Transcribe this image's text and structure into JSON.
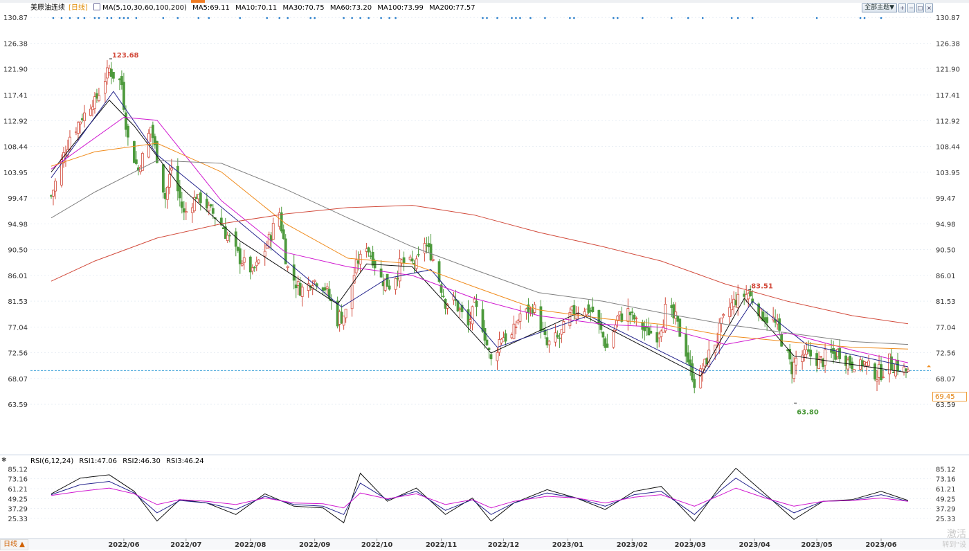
{
  "header": {
    "instrument": "美原油连续",
    "period_tag": "[日线]",
    "ma_params": "MA(5,10,30,60,100,200)",
    "ma_values": [
      {
        "label": "MA5:69.11",
        "color": "#111111"
      },
      {
        "label": "MA10:70.11",
        "color": "#23238c"
      },
      {
        "label": "MA30:70.75",
        "color": "#d018d0"
      },
      {
        "label": "MA60:73.20",
        "color": "#f08c1e"
      },
      {
        "label": "MA100:73.99",
        "color": "#808080"
      },
      {
        "label": "MA200:77.57",
        "color": "#d24b3c"
      }
    ]
  },
  "controls": {
    "main_indicator": "全部主题▼",
    "icons": [
      "zoom-in-icon",
      "zoom-out-icon",
      "restore-icon",
      "close-icon"
    ]
  },
  "rsi_header": {
    "params": "RSI(6,12,24)",
    "values": [
      {
        "label": "RSI1:47.06",
        "color": "#111111"
      },
      {
        "label": "RSI2:46.30",
        "color": "#23238c"
      },
      {
        "label": "RSI3:46.24",
        "color": "#d018d0"
      }
    ]
  },
  "footer": {
    "period_button": "日线 ▲",
    "watermark_line1": "激活",
    "watermark_line2": "转到\"设"
  },
  "current_price_label": "69.45",
  "colors": {
    "up": "#d24b3c",
    "down": "#4d9a3c",
    "ref_line": "#3aa0d8",
    "grid": "#dde6f0"
  },
  "chart_data": [
    {
      "type": "candlestick",
      "title": "美原油连续 [日线]",
      "y_ticks": [
        "130.87",
        "126.38",
        "121.90",
        "117.41",
        "112.92",
        "108.44",
        "103.95",
        "99.47",
        "94.98",
        "90.50",
        "86.01",
        "81.53",
        "77.04",
        "72.56",
        "68.07",
        "63.59"
      ],
      "ylim": [
        59.5,
        131.5
      ],
      "x_ticks": [
        "2022/06",
        "2022/07",
        "2022/08",
        "2022/09",
        "2022/10",
        "2022/11",
        "2022/12",
        "2023/01",
        "2023/02",
        "2023/03",
        "2023/04",
        "2023/05",
        "2023/06"
      ],
      "annotations": [
        {
          "text": "123.68",
          "kind": "high"
        },
        {
          "text": "83.51",
          "kind": "high"
        },
        {
          "text": "63.80",
          "kind": "low"
        }
      ],
      "close_path": {
        "dates": [
          "2022-05-11",
          "2022-05-20",
          "2022-05-27",
          "2022-06-02",
          "2022-06-08",
          "2022-06-14",
          "2022-06-17",
          "2022-06-22",
          "2022-06-28",
          "2022-07-05",
          "2022-07-08",
          "2022-07-14",
          "2022-07-20",
          "2022-07-27",
          "2022-08-02",
          "2022-08-08",
          "2022-08-16",
          "2022-08-22",
          "2022-08-29",
          "2022-09-02",
          "2022-09-08",
          "2022-09-15",
          "2022-09-20",
          "2022-09-26",
          "2022-09-30",
          "2022-10-05",
          "2022-10-10",
          "2022-10-17",
          "2022-10-21",
          "2022-10-27",
          "2022-11-03",
          "2022-11-07",
          "2022-11-11",
          "2022-11-17",
          "2022-11-22",
          "2022-11-28",
          "2022-12-01",
          "2022-12-05",
          "2022-12-09",
          "2022-12-14",
          "2022-12-19",
          "2022-12-23",
          "2022-12-30",
          "2023-01-05",
          "2023-01-11",
          "2023-01-17",
          "2023-01-23",
          "2023-01-27",
          "2023-02-03",
          "2023-02-08",
          "2023-02-13",
          "2023-02-21",
          "2023-02-27",
          "2023-03-03",
          "2023-03-08",
          "2023-03-13",
          "2023-03-17",
          "2023-03-22",
          "2023-03-28",
          "2023-04-03",
          "2023-04-06",
          "2023-04-12",
          "2023-04-18",
          "2023-04-24",
          "2023-04-28",
          "2023-05-03",
          "2023-05-05",
          "2023-05-10",
          "2023-05-16",
          "2023-05-22",
          "2023-05-26",
          "2023-06-01",
          "2023-06-07",
          "2023-06-13",
          "2023-06-19",
          "2023-06-23",
          "2023-06-28"
        ],
        "close": [
          99.8,
          110.3,
          114.1,
          116.9,
          121.9,
          119.3,
          109.6,
          104.3,
          111.8,
          99.5,
          104.8,
          96.6,
          99.8,
          97.3,
          94.4,
          89.8,
          86.6,
          90.4,
          97.0,
          87.2,
          83.5,
          85.1,
          83.9,
          78.5,
          79.5,
          87.8,
          91.1,
          85.4,
          84.5,
          88.1,
          88.2,
          91.8,
          88.9,
          81.7,
          81.2,
          77.2,
          81.2,
          76.9,
          71.0,
          75.6,
          75.2,
          79.3,
          80.3,
          73.7,
          75.1,
          79.5,
          80.1,
          79.7,
          73.4,
          78.5,
          79.7,
          76.4,
          75.7,
          79.7,
          78.2,
          72.6,
          67.0,
          70.6,
          75.3,
          80.4,
          81.7,
          82.9,
          79.2,
          78.1,
          75.0,
          69.7,
          71.5,
          72.6,
          70.9,
          72.1,
          72.7,
          70.3,
          70.8,
          68.7,
          70.8,
          70.2,
          69.2
        ]
      },
      "series": [
        {
          "name": "MA5",
          "dates": [
            "2022-05-11",
            "2022-06-08",
            "2022-06-20",
            "2022-07-12",
            "2022-08-10",
            "2022-09-26",
            "2022-10-10",
            "2022-11-01",
            "2022-12-09",
            "2023-01-20",
            "2023-03-20",
            "2023-04-10",
            "2023-05-04",
            "2023-06-28"
          ],
          "values": [
            104.0,
            116.5,
            112.0,
            101.5,
            92.0,
            81.0,
            88.0,
            87.5,
            72.5,
            79.5,
            68.5,
            82.0,
            72.0,
            69.1
          ]
        },
        {
          "name": "MA10",
          "dates": [
            "2022-05-11",
            "2022-06-10",
            "2022-07-01",
            "2022-07-30",
            "2022-09-28",
            "2022-10-20",
            "2022-11-10",
            "2022-12-12",
            "2023-01-25",
            "2023-03-22",
            "2023-04-14",
            "2023-05-10",
            "2023-06-28"
          ],
          "values": [
            103.0,
            118.0,
            107.0,
            98.5,
            80.5,
            85.5,
            87.0,
            73.5,
            79.0,
            69.0,
            81.5,
            74.0,
            70.1
          ]
        },
        {
          "name": "MA30",
          "dates": [
            "2022-05-11",
            "2022-06-15",
            "2022-07-01",
            "2022-08-01",
            "2022-09-01",
            "2022-10-01",
            "2022-11-01",
            "2022-12-01",
            "2023-01-01",
            "2023-02-01",
            "2023-03-01",
            "2023-04-01",
            "2023-05-01",
            "2023-06-01",
            "2023-06-28"
          ],
          "values": [
            104.5,
            113.5,
            113.0,
            99.0,
            90.0,
            87.5,
            86.0,
            82.0,
            79.0,
            77.5,
            77.0,
            74.0,
            76.0,
            73.0,
            70.8
          ]
        },
        {
          "name": "MA60",
          "dates": [
            "2022-05-11",
            "2022-06-01",
            "2022-07-01",
            "2022-08-01",
            "2022-09-01",
            "2022-10-01",
            "2022-11-01",
            "2022-12-01",
            "2023-01-01",
            "2023-02-01",
            "2023-03-01",
            "2023-04-01",
            "2023-05-01",
            "2023-06-01",
            "2023-06-28"
          ],
          "values": [
            105.0,
            107.5,
            109.0,
            104.0,
            95.0,
            89.0,
            88.0,
            84.0,
            80.0,
            78.5,
            77.5,
            75.5,
            74.5,
            73.5,
            73.2
          ]
        },
        {
          "name": "MA100",
          "dates": [
            "2022-05-11",
            "2022-06-01",
            "2022-07-01",
            "2022-08-01",
            "2022-09-01",
            "2022-10-01",
            "2022-11-01",
            "2022-12-01",
            "2023-01-01",
            "2023-02-01",
            "2023-03-01",
            "2023-04-01",
            "2023-05-01",
            "2023-06-01",
            "2023-06-28"
          ],
          "values": [
            96.0,
            100.5,
            106.0,
            105.5,
            101.0,
            96.0,
            91.0,
            87.0,
            83.0,
            81.5,
            79.5,
            77.5,
            76.0,
            74.5,
            74.0
          ]
        },
        {
          "name": "MA200",
          "dates": [
            "2022-05-11",
            "2022-06-01",
            "2022-07-01",
            "2022-08-01",
            "2022-09-01",
            "2022-10-01",
            "2022-11-01",
            "2022-12-01",
            "2023-01-01",
            "2023-02-01",
            "2023-03-01",
            "2023-04-01",
            "2023-05-01",
            "2023-06-01",
            "2023-06-28"
          ],
          "values": [
            85.0,
            88.5,
            92.5,
            95.0,
            96.7,
            97.8,
            98.2,
            96.5,
            93.5,
            91.0,
            88.5,
            84.5,
            81.5,
            79.0,
            77.6
          ]
        }
      ]
    },
    {
      "type": "line",
      "title": "RSI(6,12,24)",
      "y_ticks": [
        "85.12",
        "73.16",
        "61.21",
        "49.25",
        "37.29",
        "25.33"
      ],
      "ylim": [
        16,
        88
      ],
      "dates": [
        "2022-05-11",
        "2022-05-25",
        "2022-06-08",
        "2022-06-20",
        "2022-07-01",
        "2022-07-12",
        "2022-07-25",
        "2022-08-08",
        "2022-08-22",
        "2022-09-05",
        "2022-09-19",
        "2022-09-29",
        "2022-10-07",
        "2022-10-20",
        "2022-11-03",
        "2022-11-17",
        "2022-11-30",
        "2022-12-09",
        "2022-12-20",
        "2023-01-05",
        "2023-01-19",
        "2023-02-02",
        "2023-02-16",
        "2023-03-01",
        "2023-03-17",
        "2023-03-30",
        "2023-04-06",
        "2023-04-20",
        "2023-05-04",
        "2023-05-18",
        "2023-06-01",
        "2023-06-15",
        "2023-06-28"
      ],
      "series": [
        {
          "name": "RSI1",
          "values": [
            55,
            74,
            78,
            58,
            22,
            48,
            44,
            30,
            55,
            40,
            38,
            20,
            80,
            46,
            62,
            30,
            50,
            22,
            44,
            60,
            50,
            36,
            58,
            64,
            22,
            66,
            86,
            55,
            24,
            46,
            48,
            58,
            47
          ]
        },
        {
          "name": "RSI2",
          "values": [
            54,
            66,
            70,
            56,
            32,
            47,
            44,
            36,
            52,
            42,
            40,
            30,
            68,
            48,
            58,
            35,
            48,
            30,
            44,
            56,
            50,
            40,
            54,
            58,
            30,
            60,
            74,
            52,
            32,
            46,
            47,
            54,
            46
          ]
        },
        {
          "name": "RSI3",
          "values": [
            53,
            58,
            62,
            55,
            42,
            48,
            46,
            42,
            50,
            44,
            43,
            38,
            56,
            49,
            55,
            42,
            48,
            38,
            46,
            52,
            50,
            44,
            51,
            54,
            40,
            54,
            62,
            50,
            40,
            46,
            47,
            50,
            46
          ]
        }
      ]
    }
  ]
}
